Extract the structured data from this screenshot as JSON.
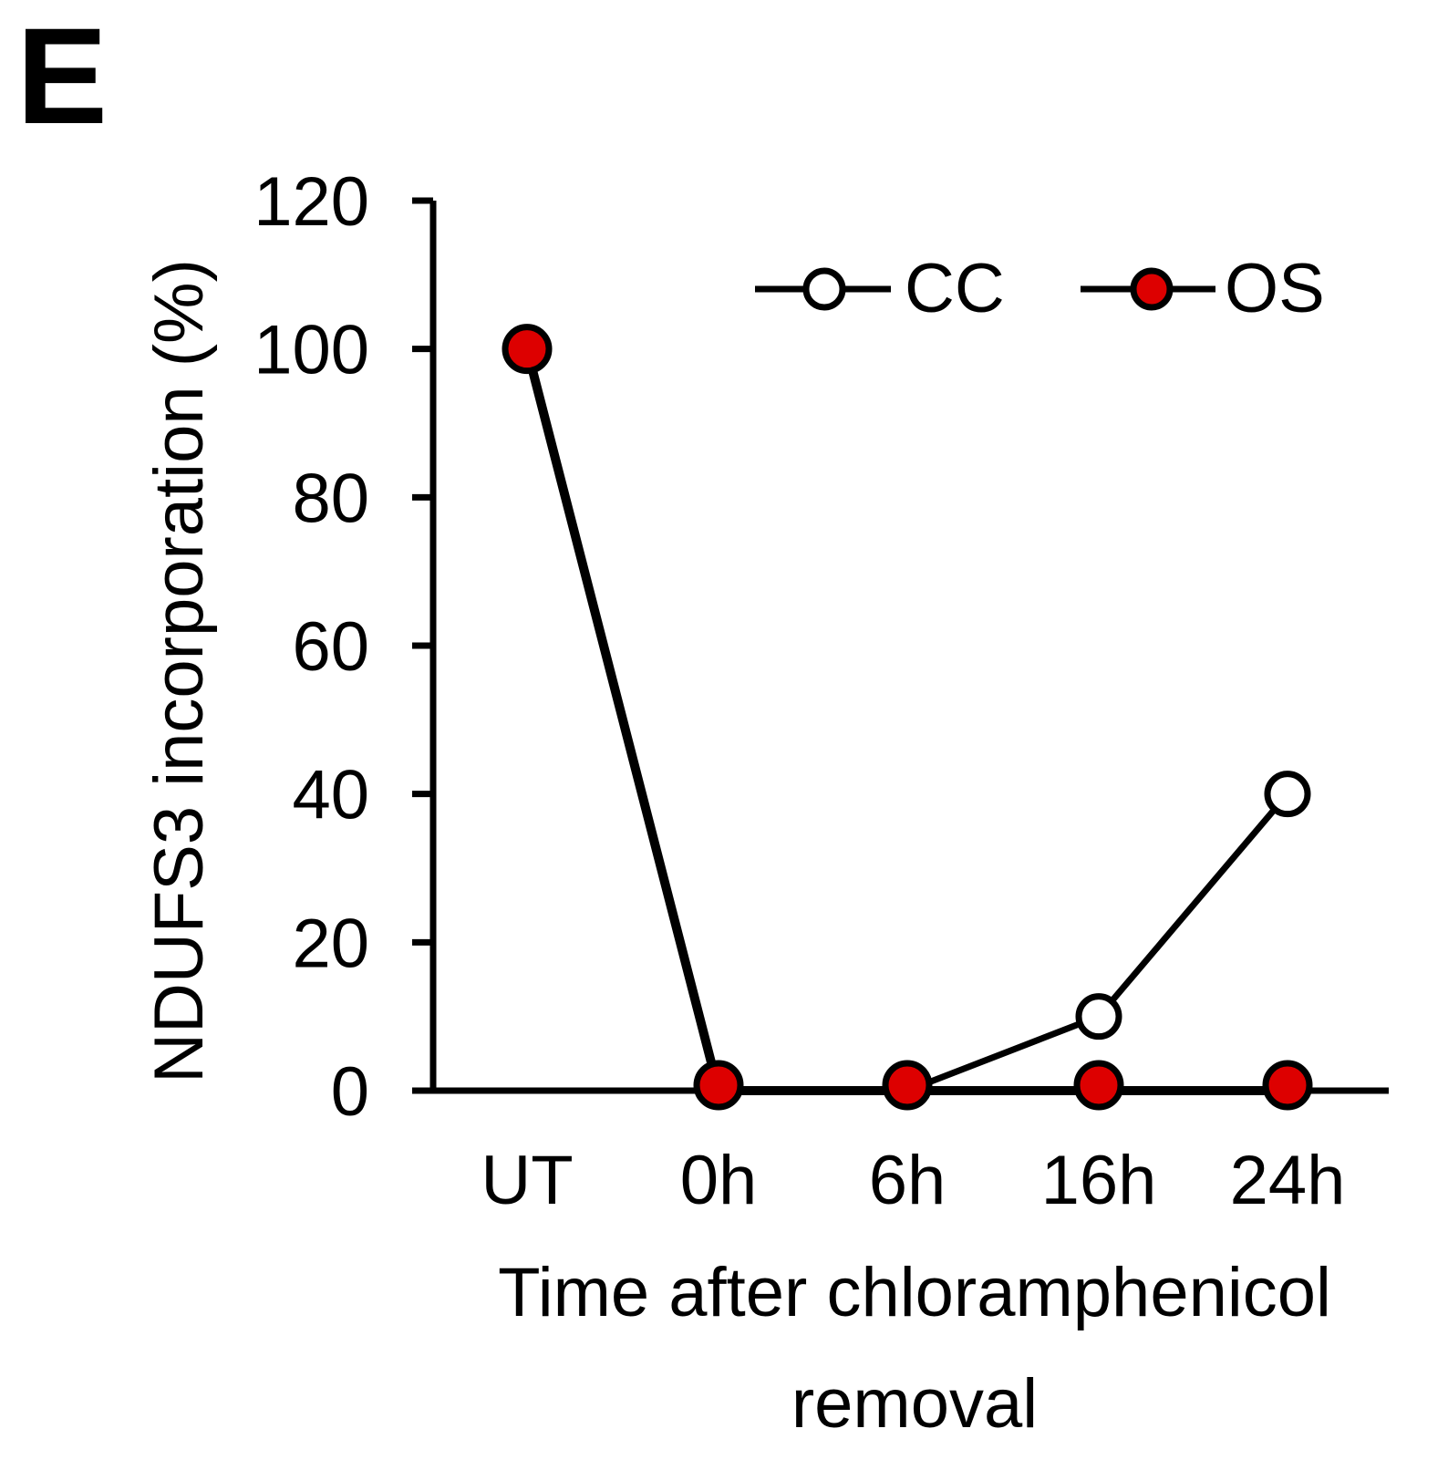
{
  "panel_label": "E",
  "colors": {
    "axis": "#000000",
    "cc_fill": "#ffffff",
    "os_fill": "#dd0000",
    "marker_stroke": "#000000"
  },
  "chart_data": {
    "type": "line",
    "title": "",
    "xlabel": "Time after chloramphenicol removal",
    "xlabel_lines": [
      "Time after chloramphenicol",
      "removal"
    ],
    "ylabel": "NDUFS3 incorporation (%)",
    "ylim": [
      0,
      120
    ],
    "yticks": [
      0,
      20,
      40,
      60,
      80,
      100,
      120
    ],
    "categories": [
      "UT",
      "0h",
      "6h",
      "16h",
      "24h"
    ],
    "legend_position": "top-right",
    "series": [
      {
        "name": "CC",
        "marker": "open-circle",
        "values": [
          100,
          0,
          0,
          10,
          40
        ]
      },
      {
        "name": "OS",
        "marker": "filled-circle",
        "values": [
          100,
          0,
          0,
          0,
          0
        ]
      }
    ]
  }
}
